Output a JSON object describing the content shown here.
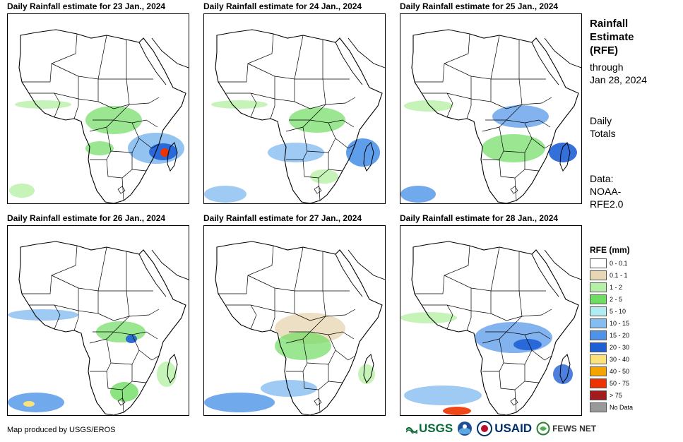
{
  "panels": [
    {
      "title": "Daily Rainfall estimate for 23 Jan., 2024"
    },
    {
      "title": "Daily Rainfall estimate for 24 Jan., 2024"
    },
    {
      "title": "Daily Rainfall estimate for 25 Jan., 2024"
    },
    {
      "title": "Daily Rainfall estimate for 26 Jan., 2024"
    },
    {
      "title": "Daily Rainfall estimate for 27 Jan., 2024"
    },
    {
      "title": "Daily Rainfall estimate for 28 Jan., 2024"
    }
  ],
  "side": {
    "title_line1": "Rainfall",
    "title_line2": "Estimate",
    "title_line3": "(RFE)",
    "through": "through",
    "date": "Jan 28, 2024",
    "daily": "Daily",
    "totals": "Totals",
    "data": "Data:",
    "source1": "NOAA-",
    "source2": "RFE2.0"
  },
  "legend": {
    "title": "RFE (mm)",
    "items": [
      {
        "label": "0 - 0.1",
        "color": "#ffffff"
      },
      {
        "label": "0.1 - 1",
        "color": "#e8d7b4"
      },
      {
        "label": "1 - 2",
        "color": "#b6f0a6"
      },
      {
        "label": "2 - 5",
        "color": "#6fdc63"
      },
      {
        "label": "5 - 10",
        "color": "#b1ecf2"
      },
      {
        "label": "10 - 15",
        "color": "#86bdf0"
      },
      {
        "label": "15 - 20",
        "color": "#4e93e8"
      },
      {
        "label": "20 - 30",
        "color": "#1f5fd6"
      },
      {
        "label": "30 - 40",
        "color": "#fce27a"
      },
      {
        "label": "40 - 50",
        "color": "#f5a300"
      },
      {
        "label": "50 - 75",
        "color": "#ee3300"
      },
      {
        "label": "> 75",
        "color": "#a11d1d"
      },
      {
        "label": "No Data",
        "color": "#999999"
      }
    ]
  },
  "footer": {
    "credit": "Map produced by USGS/EROS",
    "logo_usgs": "USGS",
    "logo_noaa": "NOAA",
    "logo_usaid": "USAID",
    "logo_fews": "FEWS NET"
  }
}
